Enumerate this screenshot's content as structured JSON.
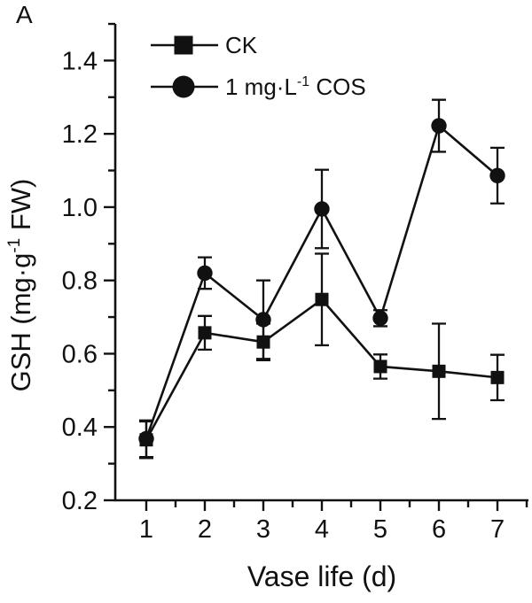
{
  "panel_label": "A",
  "colors": {
    "ink": "#111111",
    "background": "#ffffff"
  },
  "chart_data": {
    "type": "line",
    "title": "",
    "xlabel": "Vase life (d)",
    "ylabel": "GSH (mg·g⁻¹ FW)",
    "ylabel_parts": [
      {
        "t": "GSH (mg·g"
      },
      {
        "t": "-1",
        "sup": true
      },
      {
        "t": " FW)"
      }
    ],
    "x": [
      1,
      2,
      3,
      4,
      5,
      6,
      7
    ],
    "xtick_labels": [
      "1",
      "2",
      "3",
      "4",
      "5",
      "6",
      "7"
    ],
    "yticks": [
      0.2,
      0.4,
      0.6,
      0.8,
      1.0,
      1.2,
      1.4
    ],
    "ytick_labels": [
      "0.2",
      "0.4",
      "0.6",
      "0.8",
      "1.0",
      "1.2",
      "1.4"
    ],
    "xlim": [
      0.47,
      7.53
    ],
    "ylim": [
      0.2,
      1.5
    ],
    "minor_x_ticks": [
      1.5,
      2.5,
      3.5,
      4.5,
      5.5,
      6.5,
      7.5
    ],
    "minor_y_ticks": [
      0.3,
      0.5,
      0.7,
      0.9,
      1.1,
      1.3,
      1.5
    ],
    "grid": false,
    "legend_position": "top-left-inside",
    "series": [
      {
        "name": "CK",
        "marker": "square",
        "label_parts": [
          {
            "t": "CK"
          }
        ],
        "values": [
          0.365,
          0.657,
          0.632,
          0.748,
          0.565,
          0.552,
          0.535
        ],
        "errors": [
          0.05,
          0.046,
          0.05,
          0.125,
          0.033,
          0.13,
          0.062
        ]
      },
      {
        "name": "1 mg·L⁻¹ COS",
        "marker": "circle",
        "label_parts": [
          {
            "t": "1 mg·L"
          },
          {
            "t": "-1",
            "sup": true
          },
          {
            "t": " COS"
          }
        ],
        "values": [
          0.368,
          0.82,
          0.693,
          0.995,
          0.697,
          1.222,
          1.086
        ],
        "errors": [
          0.05,
          0.043,
          0.107,
          0.107,
          0.022,
          0.071,
          0.076
        ]
      }
    ]
  }
}
